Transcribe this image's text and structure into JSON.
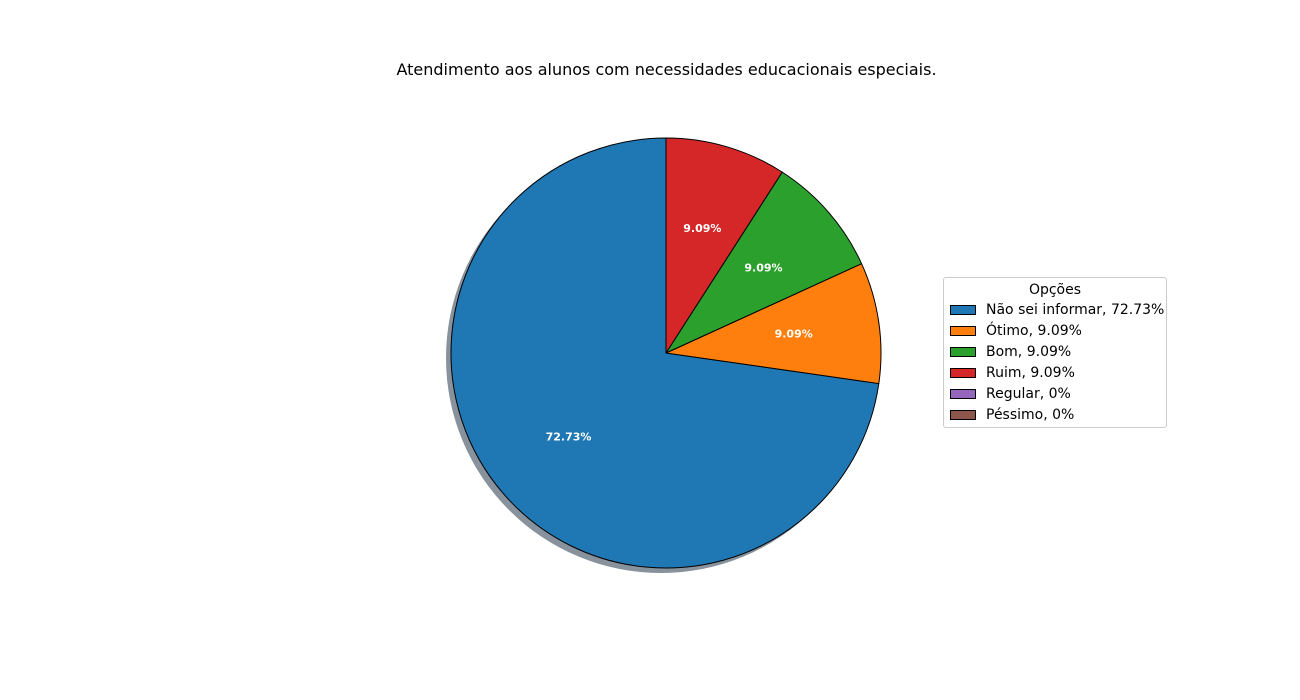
{
  "chart_data": {
    "type": "pie",
    "title": "Atendimento aos alunos com necessidades educacionais especiais.",
    "categories": [
      "Não sei informar",
      "Ótimo",
      "Bom",
      "Ruim",
      "Regular",
      "Péssimo"
    ],
    "values": [
      72.73,
      9.09,
      9.09,
      9.09,
      0,
      0
    ],
    "slice_labels": [
      "72.73%",
      "9.09%",
      "9.09%",
      "9.09%",
      "",
      ""
    ],
    "colors": [
      "#1f77b4",
      "#ff7f0e",
      "#2ca02c",
      "#d62728",
      "#9467bd",
      "#8c564b"
    ],
    "start_angle_deg": 90,
    "direction": "counterclockwise",
    "shadow": true,
    "legend": {
      "title": "Opções",
      "placement": "right",
      "entries": [
        "Não sei informar, 72.73%",
        "Ótimo, 9.09%",
        "Bom, 9.09%",
        "Ruim, 9.09%",
        "Regular, 0%",
        "Péssimo, 0%"
      ]
    }
  }
}
